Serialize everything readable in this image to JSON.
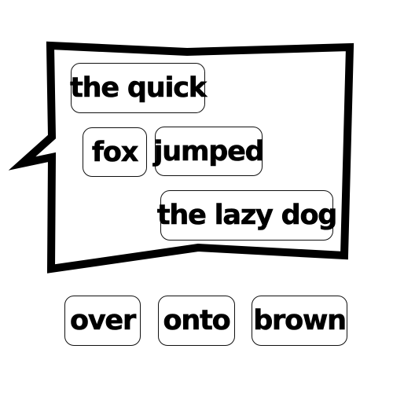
{
  "sentence_area": {
    "placed_words": [
      {
        "text": "the quick"
      },
      {
        "text": "fox"
      },
      {
        "text": "jumped"
      },
      {
        "text": "the lazy dog"
      }
    ]
  },
  "word_bank": {
    "words": [
      {
        "text": "over"
      },
      {
        "text": "onto"
      },
      {
        "text": "brown"
      }
    ]
  },
  "colors": {
    "bubble_outline": "#000000",
    "bubble_fill": "#ffffff",
    "tile_border": "#111111",
    "tile_text": "#000000",
    "background": "#ffffff"
  }
}
